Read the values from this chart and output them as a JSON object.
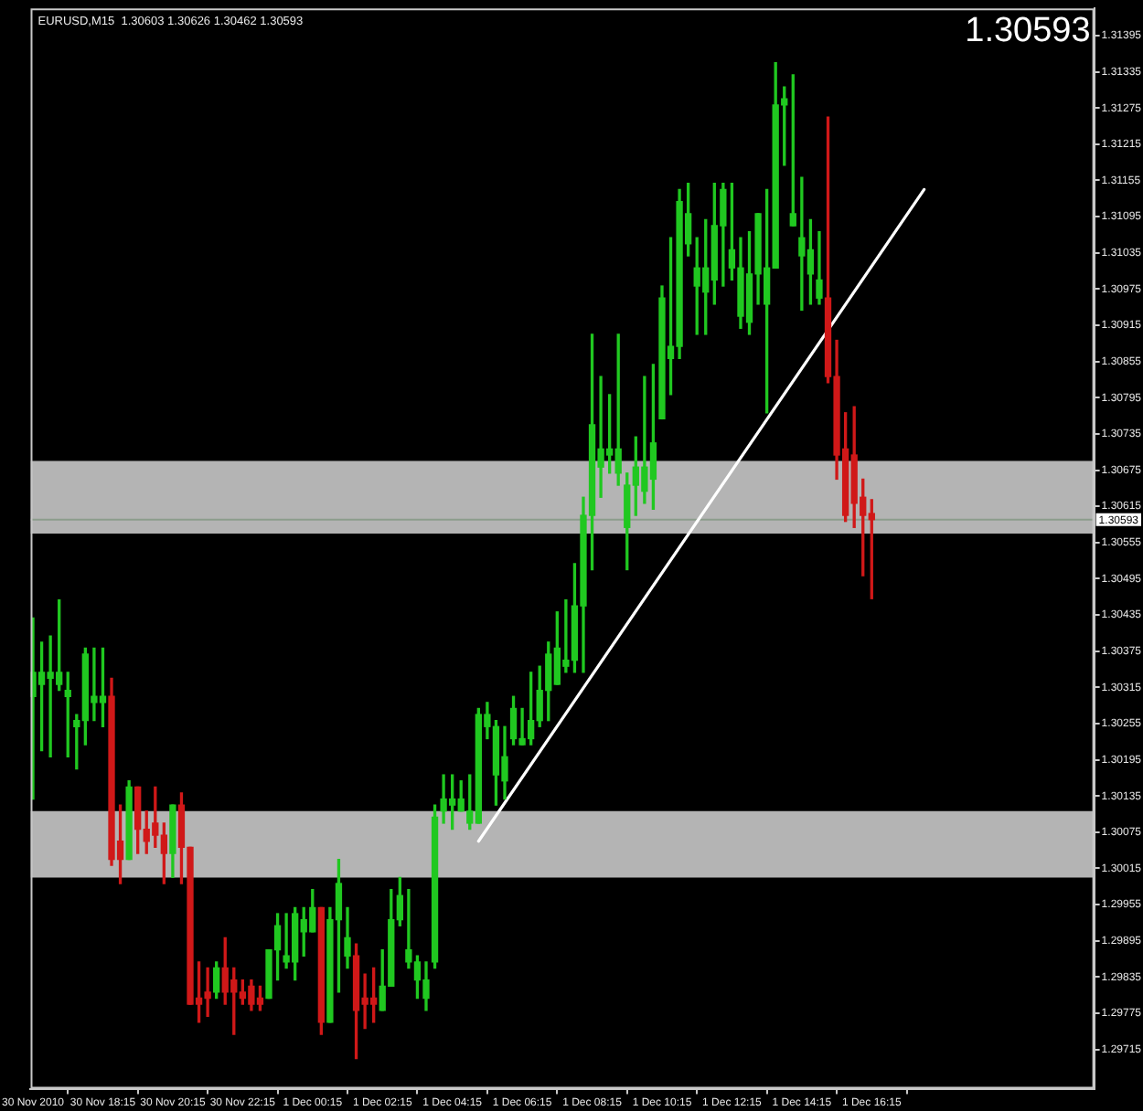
{
  "chart_data": {
    "type": "candlestick",
    "title": "EURUSD,M15  1.30603 1.30626 1.30462 1.30593",
    "annotations": [
      "1.30593"
    ],
    "series": [
      {
        "x": [
          "2010-11-30T16:15",
          "2010-11-30T16:30",
          "2010-11-30T16:45",
          "2010-11-30T17:00",
          "2010-11-30T17:15",
          "2010-11-30T17:30",
          "2010-11-30T17:45",
          "2010-11-30T18:00",
          "2010-11-30T18:15",
          "2010-11-30T18:30",
          "2010-11-30T18:45",
          "2010-11-30T19:00",
          "2010-11-30T19:15",
          "2010-11-30T19:30",
          "2010-11-30T19:45",
          "2010-11-30T20:00",
          "2010-11-30T20:15",
          "2010-11-30T20:30",
          "2010-11-30T20:45",
          "2010-11-30T21:00",
          "2010-11-30T21:15",
          "2010-11-30T21:30",
          "2010-11-30T21:45",
          "2010-11-30T22:00",
          "2010-11-30T22:15",
          "2010-11-30T22:30",
          "2010-11-30T22:45",
          "2010-11-30T23:00",
          "2010-11-30T23:15",
          "2010-11-30T23:30",
          "2010-11-30T23:45",
          "2010-12-01T00:00",
          "2010-12-01T00:15",
          "2010-12-01T00:30",
          "2010-12-01T00:45",
          "2010-12-01T01:00",
          "2010-12-01T01:15",
          "2010-12-01T01:30",
          "2010-12-01T01:45",
          "2010-12-01T02:00",
          "2010-12-01T02:15",
          "2010-12-01T02:30",
          "2010-12-01T02:45",
          "2010-12-01T03:00",
          "2010-12-01T03:15",
          "2010-12-01T03:30",
          "2010-12-01T03:45",
          "2010-12-01T04:00",
          "2010-12-01T04:15",
          "2010-12-01T04:30",
          "2010-12-01T04:45",
          "2010-12-01T05:00",
          "2010-12-01T05:15",
          "2010-12-01T05:30",
          "2010-12-01T05:45",
          "2010-12-01T06:00",
          "2010-12-01T06:15",
          "2010-12-01T06:30",
          "2010-12-01T06:45",
          "2010-12-01T07:00",
          "2010-12-01T07:15",
          "2010-12-01T07:30",
          "2010-12-01T07:45",
          "2010-12-01T08:00",
          "2010-12-01T08:15",
          "2010-12-01T08:30",
          "2010-12-01T08:45",
          "2010-12-01T09:00",
          "2010-12-01T09:15",
          "2010-12-01T09:30",
          "2010-12-01T09:45",
          "2010-12-01T10:00",
          "2010-12-01T10:15",
          "2010-12-01T10:30",
          "2010-12-01T10:45",
          "2010-12-01T11:00",
          "2010-12-01T11:15",
          "2010-12-01T11:30",
          "2010-12-01T11:45",
          "2010-12-01T12:00",
          "2010-12-01T12:15",
          "2010-12-01T12:30",
          "2010-12-01T12:45",
          "2010-12-01T13:00",
          "2010-12-01T13:15",
          "2010-12-01T13:30",
          "2010-12-01T13:45",
          "2010-12-01T14:00",
          "2010-12-01T14:15",
          "2010-12-01T14:30",
          "2010-12-01T14:45",
          "2010-12-01T15:00",
          "2010-12-01T15:15",
          "2010-12-01T15:30",
          "2010-12-01T15:45",
          "2010-12-01T16:00",
          "2010-12-01T16:15"
        ],
        "ohlc": [
          [
            1.303,
            1.3043,
            1.3013,
            1.3034
          ],
          [
            1.3032,
            1.3039,
            1.3021,
            1.3034
          ],
          [
            1.3033,
            1.304,
            1.302,
            1.3034
          ],
          [
            1.3032,
            1.3046,
            1.3031,
            1.3034
          ],
          [
            1.303,
            1.3034,
            1.302,
            1.3031
          ],
          [
            1.3025,
            1.3027,
            1.3018,
            1.3026
          ],
          [
            1.3026,
            1.3038,
            1.3022,
            1.3037
          ],
          [
            1.3029,
            1.3038,
            1.3026,
            1.303
          ],
          [
            1.3029,
            1.3038,
            1.3025,
            1.303
          ],
          [
            1.303,
            1.3033,
            1.3002,
            1.3003
          ],
          [
            1.3006,
            1.3012,
            1.2999,
            1.3003
          ],
          [
            1.3003,
            1.3016,
            1.3003,
            1.3015
          ],
          [
            1.3015,
            1.3015,
            1.3004,
            1.3008
          ],
          [
            1.3008,
            1.3011,
            1.3004,
            1.3006
          ],
          [
            1.3009,
            1.3015,
            1.3005,
            1.3007
          ],
          [
            1.3007,
            1.3009,
            1.2999,
            1.3004
          ],
          [
            1.3004,
            1.3012,
            1.3,
            1.3012
          ],
          [
            1.3012,
            1.3014,
            1.2999,
            1.3005
          ],
          [
            1.3005,
            1.3005,
            1.2979,
            1.2979
          ],
          [
            1.298,
            1.2986,
            1.2976,
            1.2979
          ],
          [
            1.2981,
            1.2985,
            1.2977,
            1.298
          ],
          [
            1.2981,
            1.2986,
            1.298,
            1.2985
          ],
          [
            1.2985,
            1.299,
            1.2979,
            1.2981
          ],
          [
            1.2983,
            1.2985,
            1.2974,
            1.2981
          ],
          [
            1.2981,
            1.2983,
            1.2979,
            1.298
          ],
          [
            1.2982,
            1.2983,
            1.2978,
            1.2979
          ],
          [
            1.298,
            1.2982,
            1.2978,
            1.2979
          ],
          [
            1.298,
            1.2988,
            1.298,
            1.2988
          ],
          [
            1.2988,
            1.2994,
            1.2983,
            1.2992
          ],
          [
            1.2986,
            1.2994,
            1.2985,
            1.2987
          ],
          [
            1.2986,
            1.2995,
            1.2983,
            1.2994
          ],
          [
            1.2991,
            1.2995,
            1.2987,
            1.2993
          ],
          [
            1.2991,
            1.2998,
            1.2991,
            1.2995
          ],
          [
            1.2995,
            1.2995,
            1.2974,
            1.2976
          ],
          [
            1.2976,
            1.2995,
            1.2976,
            1.2993
          ],
          [
            1.2993,
            1.3003,
            1.2981,
            1.2999
          ],
          [
            1.2987,
            1.2995,
            1.2985,
            1.299
          ],
          [
            1.2987,
            1.2989,
            1.297,
            1.2978
          ],
          [
            1.298,
            1.2984,
            1.2975,
            1.2979
          ],
          [
            1.298,
            1.2985,
            1.2976,
            1.2979
          ],
          [
            1.2978,
            1.2988,
            1.2978,
            1.2982
          ],
          [
            1.2982,
            1.2998,
            1.2982,
            1.2993
          ],
          [
            1.2993,
            1.3,
            1.2992,
            1.2997
          ],
          [
            1.2986,
            1.2998,
            1.2985,
            1.2988
          ],
          [
            1.2983,
            1.2987,
            1.298,
            1.2986
          ],
          [
            1.298,
            1.2986,
            1.2978,
            1.2983
          ],
          [
            1.2986,
            1.3012,
            1.2985,
            1.301
          ],
          [
            1.3011,
            1.3017,
            1.3009,
            1.3013
          ],
          [
            1.3012,
            1.3017,
            1.3008,
            1.3013
          ],
          [
            1.3011,
            1.3016,
            1.3011,
            1.3013
          ],
          [
            1.3009,
            1.3017,
            1.3008,
            1.3011
          ],
          [
            1.3009,
            1.3028,
            1.3009,
            1.3027
          ],
          [
            1.3025,
            1.3029,
            1.3023,
            1.3027
          ],
          [
            1.3017,
            1.3026,
            1.3012,
            1.3025
          ],
          [
            1.3016,
            1.3025,
            1.3013,
            1.302
          ],
          [
            1.3023,
            1.303,
            1.3022,
            1.3028
          ],
          [
            1.3022,
            1.3028,
            1.3022,
            1.3023
          ],
          [
            1.3023,
            1.3034,
            1.3022,
            1.3026
          ],
          [
            1.3026,
            1.3035,
            1.3025,
            1.3031
          ],
          [
            1.3031,
            1.3039,
            1.3026,
            1.3037
          ],
          [
            1.3032,
            1.3044,
            1.3032,
            1.3038
          ],
          [
            1.3035,
            1.3046,
            1.3034,
            1.3036
          ],
          [
            1.3036,
            1.3052,
            1.3034,
            1.3045
          ],
          [
            1.3045,
            1.3063,
            1.3034,
            1.306
          ],
          [
            1.306,
            1.309,
            1.3051,
            1.3075
          ],
          [
            1.3068,
            1.3083,
            1.3063,
            1.3071
          ],
          [
            1.307,
            1.308,
            1.3067,
            1.3071
          ],
          [
            1.3067,
            1.309,
            1.3065,
            1.3071
          ],
          [
            1.3058,
            1.3067,
            1.3051,
            1.3065
          ],
          [
            1.3065,
            1.3073,
            1.306,
            1.3068
          ],
          [
            1.3064,
            1.3083,
            1.3062,
            1.3068
          ],
          [
            1.3066,
            1.3085,
            1.3061,
            1.3072
          ],
          [
            1.3076,
            1.3098,
            1.3076,
            1.3096
          ],
          [
            1.3086,
            1.3106,
            1.308,
            1.3088
          ],
          [
            1.3088,
            1.3114,
            1.3086,
            1.3112
          ],
          [
            1.3105,
            1.3115,
            1.3103,
            1.311
          ],
          [
            1.3098,
            1.3106,
            1.309,
            1.3101
          ],
          [
            1.3097,
            1.3109,
            1.309,
            1.3101
          ],
          [
            1.3099,
            1.3115,
            1.3095,
            1.3108
          ],
          [
            1.3108,
            1.3115,
            1.3098,
            1.3114
          ],
          [
            1.3101,
            1.3115,
            1.3099,
            1.3104
          ],
          [
            1.3093,
            1.3106,
            1.3091,
            1.3101
          ],
          [
            1.3092,
            1.3107,
            1.309,
            1.31
          ],
          [
            1.31,
            1.311,
            1.3095,
            1.311
          ],
          [
            1.3095,
            1.3114,
            1.3077,
            1.3101
          ],
          [
            1.3101,
            1.3135,
            1.3101,
            1.3128
          ],
          [
            1.3128,
            1.3131,
            1.3118,
            1.3129
          ],
          [
            1.3108,
            1.3133,
            1.3108,
            1.311
          ],
          [
            1.3103,
            1.3116,
            1.3094,
            1.3106
          ],
          [
            1.31,
            1.3109,
            1.3095,
            1.3104
          ],
          [
            1.3096,
            1.3107,
            1.3095,
            1.3099
          ],
          [
            1.3096,
            1.3126,
            1.3082,
            1.3083
          ],
          [
            1.3083,
            1.3089,
            1.3066,
            1.307
          ],
          [
            1.3071,
            1.3077,
            1.3059,
            1.306
          ],
          [
            1.307,
            1.3078,
            1.3058,
            1.3062
          ],
          [
            1.3063,
            1.3066,
            1.305,
            1.306
          ],
          [
            1.30603,
            1.30626,
            1.30462,
            1.30593
          ]
        ],
        "colors": [
          "#20c820",
          "#20c820",
          "#20c820",
          "#20c820",
          "#20c820",
          "#20c820",
          "#20c820",
          "#20c820",
          "#20c820",
          "#d01818",
          "#d01818",
          "#20c820",
          "#d01818",
          "#d01818",
          "#d01818",
          "#d01818",
          "#20c820",
          "#d01818",
          "#d01818",
          "#d01818",
          "#d01818",
          "#20c820",
          "#d01818",
          "#d01818",
          "#d01818",
          "#d01818",
          "#d01818",
          "#20c820",
          "#20c820",
          "#20c820",
          "#20c820",
          "#20c820",
          "#20c820",
          "#d01818",
          "#20c820",
          "#20c820",
          "#20c820",
          "#d01818",
          "#d01818",
          "#d01818",
          "#20c820",
          "#20c820",
          "#20c820",
          "#20c820",
          "#20c820",
          "#20c820",
          "#20c820",
          "#20c820",
          "#20c820",
          "#20c820",
          "#20c820",
          "#20c820",
          "#20c820",
          "#20c820",
          "#20c820",
          "#20c820",
          "#20c820",
          "#20c820",
          "#20c820",
          "#20c820",
          "#20c820",
          "#20c820",
          "#20c820",
          "#20c820",
          "#20c820",
          "#20c820",
          "#20c820",
          "#20c820",
          "#20c820",
          "#20c820",
          "#20c820",
          "#20c820",
          "#20c820",
          "#20c820",
          "#20c820",
          "#20c820",
          "#20c820",
          "#20c820",
          "#20c820",
          "#20c820",
          "#20c820",
          "#20c820",
          "#20c820",
          "#20c820",
          "#20c820",
          "#20c820",
          "#20c820",
          "#20c820",
          "#20c820",
          "#20c820",
          "#20c820",
          "#d01818",
          "#d01818",
          "#d01818",
          "#d01818",
          "#d01818",
          "#d01818"
        ]
      },
      {
        "type": "line",
        "x": [
          "2010-12-01T05:00",
          "2010-12-01T17:45"
        ],
        "values": [
          1.3006,
          1.3114
        ],
        "color": "#ffffff"
      }
    ],
    "xlim": [
      "2010-11-30T16:11",
      "2010-12-01T22:37"
    ],
    "xticks": [
      {
        "value": "2010-11-30T16:15",
        "label": "30 Nov 2010"
      },
      {
        "value": "2010-11-30T18:15",
        "label": "30 Nov 18:15"
      },
      {
        "value": "2010-11-30T20:15",
        "label": "30 Nov 20:15"
      },
      {
        "value": "2010-11-30T22:15",
        "label": "30 Nov 22:15"
      },
      {
        "value": "2010-12-01T00:15",
        "label": "1 Dec 00:15"
      },
      {
        "value": "2010-12-01T02:15",
        "label": "1 Dec 02:15"
      },
      {
        "value": "2010-12-01T04:15",
        "label": "1 Dec 04:15"
      },
      {
        "value": "2010-12-01T06:15",
        "label": "1 Dec 06:15"
      },
      {
        "value": "2010-12-01T08:15",
        "label": "1 Dec 08:15"
      },
      {
        "value": "2010-12-01T10:15",
        "label": "1 Dec 10:15"
      },
      {
        "value": "2010-12-01T12:15",
        "label": "1 Dec 12:15"
      },
      {
        "value": "2010-12-01T14:15",
        "label": "1 Dec 14:15"
      },
      {
        "value": "2010-12-01T16:15",
        "label": "1 Dec 16:15"
      }
    ],
    "ylim": [
      1.2965,
      1.3144
    ],
    "yticks": [
      1.29715,
      1.29775,
      1.29835,
      1.29895,
      1.29955,
      1.30015,
      1.30075,
      1.30135,
      1.30195,
      1.30255,
      1.30315,
      1.30375,
      1.30435,
      1.30495,
      1.30555,
      1.30615,
      1.30675,
      1.30735,
      1.30795,
      1.30855,
      1.30915,
      1.30975,
      1.31035,
      1.31095,
      1.31155,
      1.31215,
      1.31275,
      1.31335,
      1.31395
    ],
    "bands": [
      {
        "axis": "y",
        "from": 1.3057,
        "to": 1.3069,
        "color": "#b4b4b4"
      },
      {
        "axis": "y",
        "from": 1.3,
        "to": 1.3011,
        "color": "#b4b4b4"
      }
    ],
    "ref_lines": [
      {
        "axis": "y",
        "value": 1.30593,
        "label": "1.30593",
        "color": "#8c9c8c"
      }
    ]
  }
}
